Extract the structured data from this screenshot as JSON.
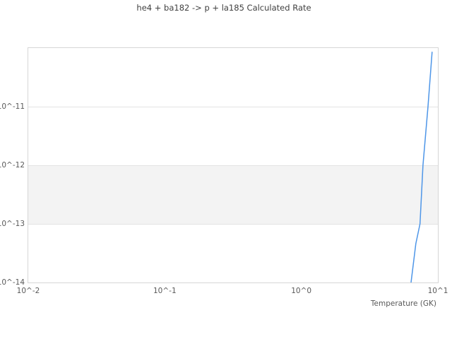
{
  "figure": {
    "background": "#ffffff",
    "title_color": "#404040",
    "tick_text_color": "#595959"
  },
  "chart_data": {
    "type": "line",
    "title": "he4 + ba182 -> p + la185 Calculated Rate",
    "xlabel": "Temperature (GK)",
    "ylabel": "",
    "x_scale": "log",
    "y_scale": "log",
    "xlim": [
      0.01,
      10
    ],
    "ylim": [
      1e-14,
      1e-10
    ],
    "grid": "horizontal",
    "legend": "none",
    "x_ticks": [
      {
        "value": 0.01,
        "label": "10^-2"
      },
      {
        "value": 0.1,
        "label": "10^-1"
      },
      {
        "value": 1,
        "label": "10^0"
      },
      {
        "value": 10,
        "label": "10^1"
      }
    ],
    "y_ticks": [
      {
        "value": 1e-11,
        "label": "10^-11"
      },
      {
        "value": 1e-12,
        "label": "10^-12"
      },
      {
        "value": 1e-13,
        "label": "10^-13"
      },
      {
        "value": 1e-14,
        "label": "10^-14"
      }
    ],
    "band": {
      "y_from": 1e-13,
      "y_to": 1e-12,
      "color": "#f3f3f3"
    },
    "colors": {
      "gridline": "#e3e3e3",
      "border": "#d6d6d6"
    },
    "series": [
      {
        "name": "calculated rate",
        "color": "#4e96e8",
        "line_width": 1.5,
        "points": [
          [
            6.36,
            1e-14
          ],
          [
            6.9,
            4.6e-14
          ],
          [
            7.4,
            1e-13
          ],
          [
            7.78,
            1e-12
          ],
          [
            8.46,
            1e-11
          ],
          [
            9.07,
            8.5e-11
          ]
        ]
      }
    ]
  }
}
